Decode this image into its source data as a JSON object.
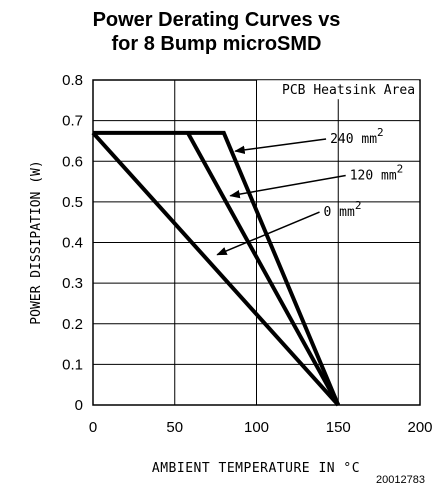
{
  "chart_data": {
    "type": "line",
    "title_line1": "Power Derating Curves vs",
    "title_line2": "for 8 Bump microSMD",
    "xlabel": "AMBIENT TEMPERATURE IN °C",
    "ylabel": "POWER DISSIPATION (W)",
    "xlim": [
      0,
      200
    ],
    "ylim": [
      0,
      0.8
    ],
    "x_ticks": [
      0,
      50,
      100,
      150,
      200
    ],
    "x_tick_labels": [
      "0",
      "50",
      "100",
      "150",
      "200"
    ],
    "y_ticks": [
      0,
      0.1,
      0.2,
      0.3,
      0.4,
      0.5,
      0.6,
      0.7,
      0.8
    ],
    "y_tick_labels": [
      "0",
      "0.1",
      "0.2",
      "0.3",
      "0.4",
      "0.5",
      "0.6",
      "0.7",
      "0.8"
    ],
    "x_gridlines": [
      50,
      100,
      150
    ],
    "y_gridlines": [
      0.1,
      0.2,
      0.3,
      0.4,
      0.5,
      0.6,
      0.7
    ],
    "legend_title": "PCB Heatsink Area",
    "series": [
      {
        "name": "240 mm²",
        "label_base": "240 mm",
        "sup": "2",
        "x": [
          0,
          80,
          150
        ],
        "y": [
          0.67,
          0.67,
          0
        ]
      },
      {
        "name": "120 mm²",
        "label_base": "120 mm",
        "sup": "2",
        "x": [
          58,
          150
        ],
        "y": [
          0.67,
          0
        ]
      },
      {
        "name": "0 mm²",
        "label_base": "0 mm",
        "sup": "2",
        "x": [
          0,
          150
        ],
        "y": [
          0.67,
          0
        ]
      }
    ],
    "annotations": [
      {
        "series": 0,
        "text_anchor": [
          145,
          0.645
        ],
        "arrow_to": [
          87,
          0.625
        ]
      },
      {
        "series": 1,
        "text_anchor": [
          157,
          0.555
        ],
        "arrow_to": [
          84,
          0.515
        ]
      },
      {
        "series": 2,
        "text_anchor": [
          141,
          0.465
        ],
        "arrow_to": [
          76,
          0.37
        ]
      }
    ],
    "figure_id": "20012783"
  }
}
